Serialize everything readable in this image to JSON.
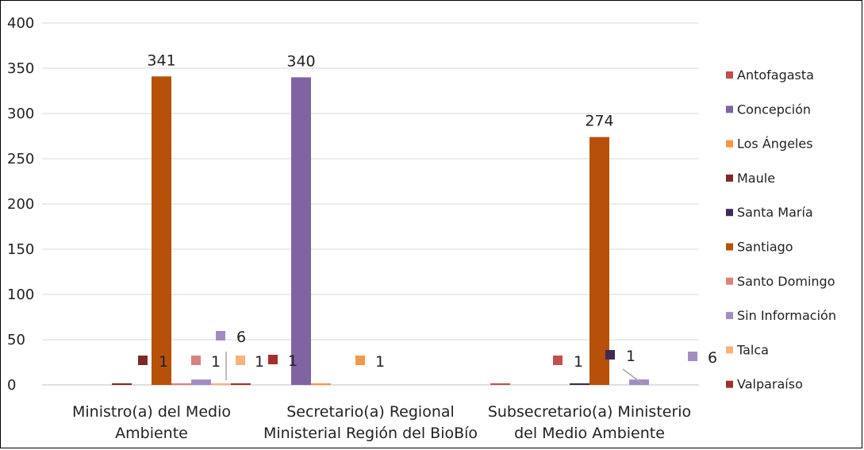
{
  "chart_data": {
    "type": "bar",
    "ylim": [
      0,
      400
    ],
    "yticks": [
      "0",
      "50",
      "100",
      "150",
      "200",
      "250",
      "300",
      "350",
      "400"
    ],
    "grid": true,
    "legend_position": "right",
    "categories": [
      [
        "Ministro(a) del Medio",
        "Ambiente"
      ],
      [
        "Secretario(a) Regional",
        "Ministerial Región del BioBío"
      ],
      [
        "Subsecretario(a) Ministerio",
        "del Medio Ambiente"
      ]
    ],
    "series": [
      {
        "name": "Antofagasta",
        "color": "#c0504d",
        "values": [
          0,
          0,
          1
        ]
      },
      {
        "name": "Concepción",
        "color": "#8064a2",
        "values": [
          0,
          340,
          0
        ]
      },
      {
        "name": "Los Ángeles",
        "color": "#f79646",
        "values": [
          0,
          1,
          0
        ]
      },
      {
        "name": "Maule",
        "color": "#7b2b27",
        "values": [
          1,
          0,
          0
        ]
      },
      {
        "name": "Santa María",
        "color": "#3d2b56",
        "values": [
          0,
          0,
          1
        ]
      },
      {
        "name": "Santiago",
        "color": "#b7510a",
        "values": [
          341,
          0,
          274
        ]
      },
      {
        "name": "Santo Domingo",
        "color": "#d98381",
        "values": [
          1,
          0,
          0
        ]
      },
      {
        "name": "Sin Información",
        "color": "#a28dc3",
        "values": [
          6,
          0,
          6
        ]
      },
      {
        "name": "Talca",
        "color": "#f9b27a",
        "values": [
          1,
          0,
          0
        ]
      },
      {
        "name": "Valparaíso",
        "color": "#a32f2c",
        "values": [
          1,
          0,
          0
        ]
      }
    ],
    "data_labels": [
      "341",
      "340",
      "274",
      "1",
      "1",
      "1",
      "1",
      "6",
      "1",
      "1",
      "1",
      "6"
    ]
  }
}
